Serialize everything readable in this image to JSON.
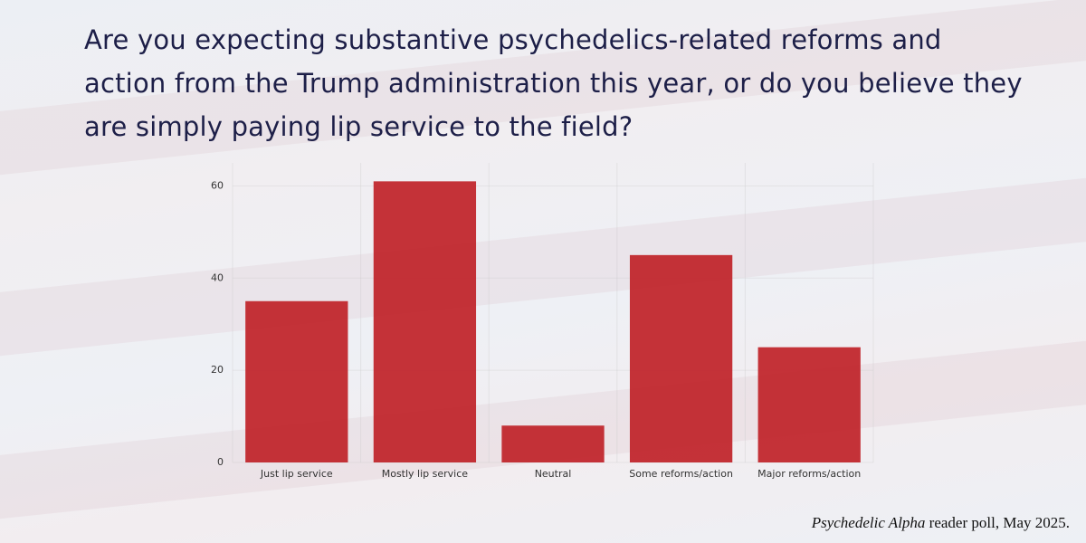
{
  "chart_data": {
    "type": "bar",
    "title": "Are you expecting substantive psychedelics-related reforms and action from the Trump administration this year, or do you believe they are simply paying lip service to the field?",
    "categories": [
      "Just lip service",
      "Mostly lip service",
      "Neutral",
      "Some reforms/action",
      "Major reforms/action"
    ],
    "values": [
      35,
      61,
      8,
      45,
      25
    ],
    "color": "#c1272d",
    "ylim": [
      0,
      65
    ],
    "yticks": [
      0,
      20,
      40,
      60
    ],
    "grid": true,
    "source": {
      "publication": "Psychedelic Alpha",
      "text": "reader poll, May 2025."
    }
  }
}
